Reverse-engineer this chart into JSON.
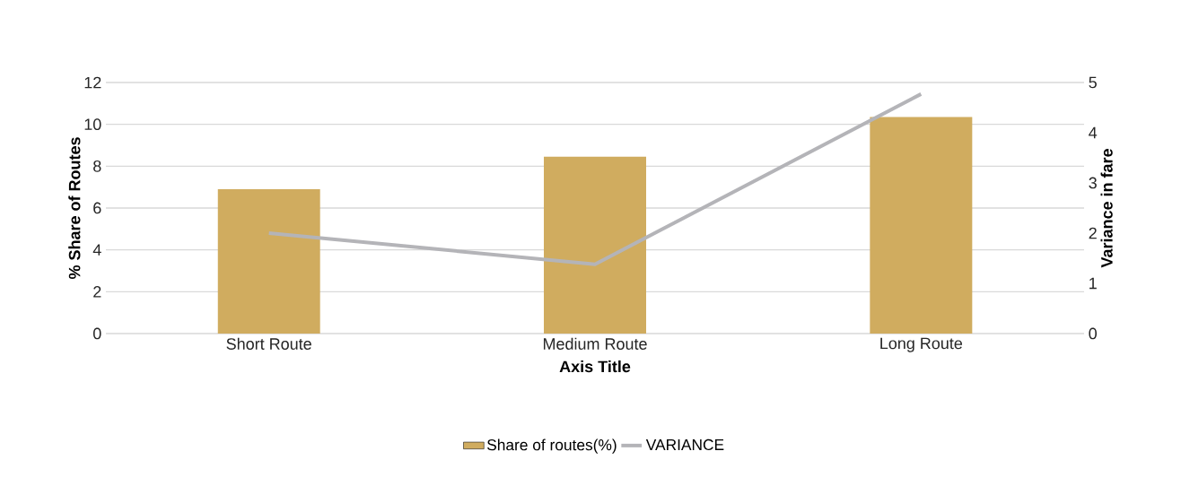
{
  "chart_data": {
    "type": "bar",
    "xlabel": "Axis Title",
    "ylabel": "% Share of Routes",
    "y2label": "Variance in fare",
    "categories": [
      "Short Route",
      "Medium Route",
      "Long Route"
    ],
    "series": [
      {
        "name": "Share of routes(%)",
        "color": "#d0ac5f",
        "values": [
          6.9,
          8.45,
          10.35
        ]
      },
      {
        "name": "VARIANCE",
        "type": "line",
        "axis": "y2",
        "color": "#b4b4b8",
        "values": [
          2.0,
          1.38,
          4.77
        ]
      }
    ],
    "ylim": [
      0,
      12
    ],
    "yticks": [
      0,
      2,
      4,
      6,
      8,
      10,
      12
    ],
    "y2lim": [
      0,
      5
    ],
    "y2ticks": [
      0,
      1,
      2,
      3,
      4,
      5
    ],
    "grid": "y",
    "legend": "bottom",
    "marker": "none",
    "line_style": "solid"
  }
}
